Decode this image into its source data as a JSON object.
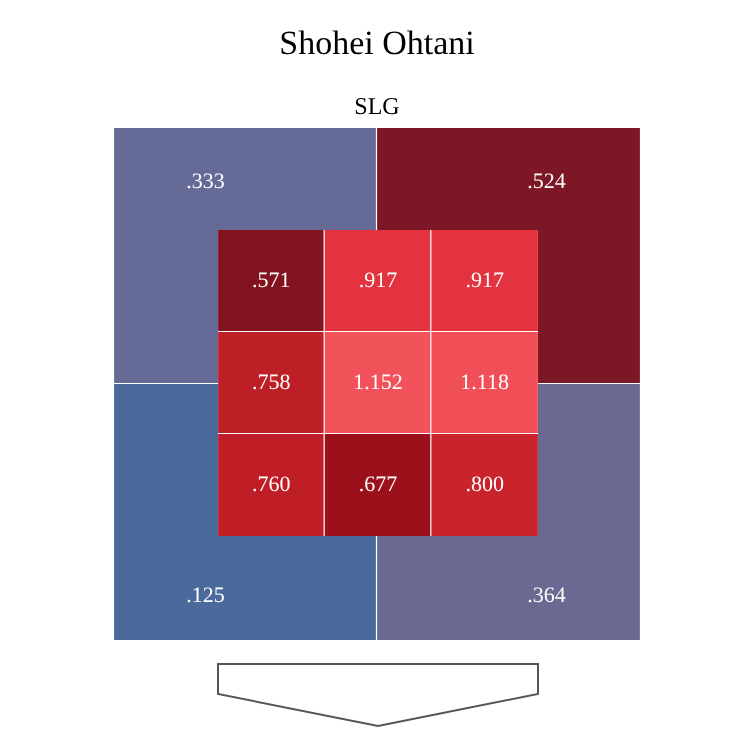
{
  "chart_data": [
    {
      "type": "heatmap",
      "title": "Shohei Ohtani",
      "subtitle": "SLG",
      "categories": [
        null,
        null
      ],
      "y_categories": [
        null,
        null
      ],
      "cells": [
        [
          0.333,
          0.524
        ],
        [
          0.125,
          0.364
        ]
      ],
      "cell_labels": [
        [
          ".333",
          ".524"
        ],
        [
          ".125",
          ".364"
        ]
      ]
    },
    {
      "type": "heatmap",
      "categories": [
        null,
        null,
        null
      ],
      "y_categories": [
        null,
        null,
        null
      ],
      "cells": [
        [
          0.571,
          0.917,
          0.917
        ],
        [
          0.758,
          1.152,
          1.118
        ],
        [
          0.76,
          0.677,
          0.8
        ]
      ],
      "cell_labels": [
        [
          ".571",
          ".917",
          ".917"
        ],
        [
          ".758",
          "1.152",
          "1.118"
        ],
        [
          ".760",
          ".677",
          ".800"
        ]
      ]
    }
  ]
}
